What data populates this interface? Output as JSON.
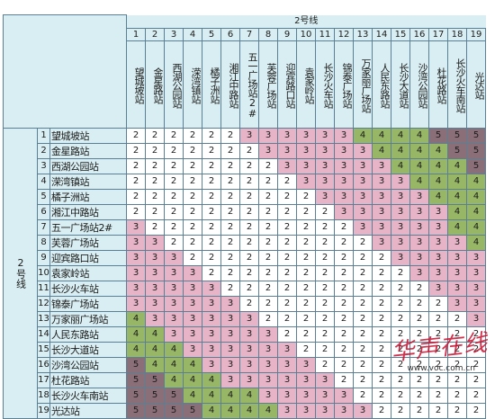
{
  "title": "2号线",
  "row_group_label": "2号线",
  "column_numbers": [
    "1",
    "2",
    "3",
    "4",
    "5",
    "6",
    "7",
    "8",
    "9",
    "10",
    "11",
    "12",
    "13",
    "14",
    "15",
    "16",
    "17",
    "18",
    "19"
  ],
  "stations": [
    "望城坡站",
    "金星路站",
    "西湖公园站",
    "溁湾镇站",
    "橘子洲站",
    "湘江中路站",
    "五一广场站2#",
    "芙蓉广场站",
    "迎宾路口站",
    "袁家岭站",
    "长沙火车站",
    "锦泰广场站",
    "万家丽广场站",
    "人民东路站",
    "长沙大道站",
    "沙湾公园站",
    "杜花路站",
    "长沙火车南站",
    "光达站"
  ],
  "column_headers": [
    "望城坡站",
    "金星路站",
    "西湖公园站",
    "溁湾镇站",
    "橘子洲站",
    "湘江中路站",
    "五一广场站2#",
    "芙蓉广场站",
    "迎宾路口站",
    "袁家岭站",
    "长沙火车站",
    "锦泰广场站",
    "万家丽广场站",
    "人民东路站",
    "长沙大道站",
    "沙湾公园站",
    "杜花路站",
    "长沙火车南站",
    "光达站"
  ],
  "fares": [
    [
      2,
      2,
      2,
      2,
      2,
      2,
      3,
      3,
      3,
      3,
      3,
      3,
      4,
      4,
      4,
      4,
      5,
      5,
      5
    ],
    [
      2,
      2,
      2,
      2,
      2,
      2,
      2,
      3,
      3,
      3,
      3,
      3,
      3,
      4,
      4,
      4,
      4,
      5,
      5
    ],
    [
      2,
      2,
      2,
      2,
      2,
      2,
      2,
      2,
      3,
      3,
      3,
      3,
      3,
      3,
      4,
      4,
      4,
      4,
      5
    ],
    [
      2,
      2,
      2,
      2,
      2,
      2,
      2,
      2,
      2,
      3,
      3,
      3,
      3,
      3,
      3,
      4,
      4,
      4,
      4
    ],
    [
      2,
      2,
      2,
      2,
      2,
      2,
      2,
      2,
      2,
      2,
      3,
      3,
      3,
      3,
      3,
      3,
      4,
      4,
      4
    ],
    [
      2,
      2,
      2,
      2,
      2,
      2,
      2,
      2,
      2,
      2,
      2,
      3,
      3,
      3,
      3,
      3,
      3,
      4,
      4
    ],
    [
      3,
      2,
      2,
      2,
      2,
      2,
      2,
      2,
      2,
      2,
      2,
      2,
      3,
      3,
      3,
      3,
      3,
      4,
      4
    ],
    [
      3,
      3,
      2,
      2,
      2,
      2,
      2,
      2,
      2,
      2,
      2,
      2,
      2,
      3,
      3,
      3,
      3,
      3,
      4
    ],
    [
      3,
      3,
      3,
      2,
      2,
      2,
      2,
      2,
      2,
      2,
      2,
      2,
      2,
      2,
      3,
      3,
      3,
      3,
      3
    ],
    [
      3,
      3,
      3,
      3,
      2,
      2,
      2,
      2,
      2,
      2,
      2,
      2,
      2,
      2,
      2,
      3,
      3,
      3,
      3
    ],
    [
      3,
      3,
      3,
      3,
      3,
      2,
      2,
      2,
      2,
      2,
      2,
      2,
      2,
      2,
      2,
      2,
      3,
      3,
      3
    ],
    [
      3,
      3,
      3,
      3,
      3,
      3,
      2,
      2,
      2,
      2,
      2,
      2,
      2,
      2,
      2,
      2,
      2,
      3,
      3
    ],
    [
      4,
      3,
      3,
      3,
      3,
      3,
      3,
      2,
      2,
      2,
      2,
      2,
      2,
      2,
      2,
      2,
      2,
      2,
      3
    ],
    [
      4,
      4,
      3,
      3,
      3,
      3,
      3,
      3,
      2,
      2,
      2,
      2,
      2,
      2,
      2,
      2,
      2,
      2,
      2
    ],
    [
      4,
      4,
      4,
      3,
      3,
      3,
      3,
      3,
      3,
      2,
      2,
      2,
      2,
      2,
      2,
      2,
      2,
      2,
      2
    ],
    [
      5,
      4,
      4,
      4,
      3,
      3,
      3,
      3,
      3,
      3,
      2,
      2,
      2,
      2,
      2,
      2,
      2,
      2,
      2
    ],
    [
      5,
      5,
      4,
      4,
      4,
      3,
      3,
      3,
      3,
      3,
      3,
      2,
      2,
      2,
      2,
      2,
      2,
      2,
      2
    ],
    [
      5,
      5,
      5,
      4,
      4,
      4,
      4,
      3,
      3,
      3,
      3,
      3,
      2,
      2,
      2,
      2,
      2,
      2,
      2
    ],
    [
      5,
      5,
      5,
      5,
      4,
      4,
      4,
      4,
      3,
      3,
      3,
      3,
      3,
      2,
      2,
      2,
      2,
      2,
      2
    ]
  ],
  "fare_colors": {
    "2": "#ffffff",
    "3": "#e6b4c6",
    "4": "#97b767",
    "5": "#8a6f78"
  },
  "watermark": "华声在线",
  "watermark_url": "www.voc.com.cn",
  "logo_icon": "metro-logo-icon"
}
